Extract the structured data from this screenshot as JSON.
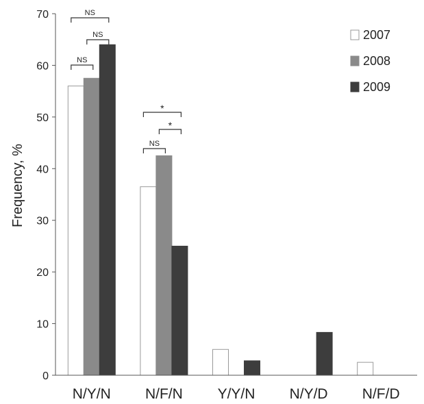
{
  "chart_data": {
    "type": "bar",
    "categories": [
      "N/Y/N",
      "N/F/N",
      "Y/Y/N",
      "N/Y/D",
      "N/F/D"
    ],
    "series": [
      {
        "name": "2007",
        "values": [
          56,
          36.5,
          5,
          null,
          2.5
        ],
        "color": "#ffffff"
      },
      {
        "name": "2008",
        "values": [
          57.5,
          42.5,
          null,
          null,
          null
        ],
        "color": "#8a8a8a"
      },
      {
        "name": "2009",
        "values": [
          64,
          25,
          2.8,
          8.3,
          null
        ],
        "color": "#3d3d3d"
      }
    ],
    "title": "",
    "xlabel": "",
    "ylabel": "Frequency, %",
    "ylim": [
      0,
      70
    ],
    "yticks": [
      0,
      10,
      20,
      30,
      40,
      50,
      60,
      70
    ],
    "grid": false,
    "legend_position": "top-right",
    "annotations": [
      {
        "category": 0,
        "from_series": 0,
        "to_series": 2,
        "label": "NS"
      },
      {
        "category": 0,
        "from_series": 1,
        "to_series": 2,
        "label": "NS"
      },
      {
        "category": 0,
        "from_series": 0,
        "to_series": 1,
        "label": "NS"
      },
      {
        "category": 1,
        "from_series": 0,
        "to_series": 2,
        "label": "*"
      },
      {
        "category": 1,
        "from_series": 1,
        "to_series": 2,
        "label": "*"
      },
      {
        "category": 1,
        "from_series": 0,
        "to_series": 1,
        "label": "NS"
      }
    ]
  }
}
